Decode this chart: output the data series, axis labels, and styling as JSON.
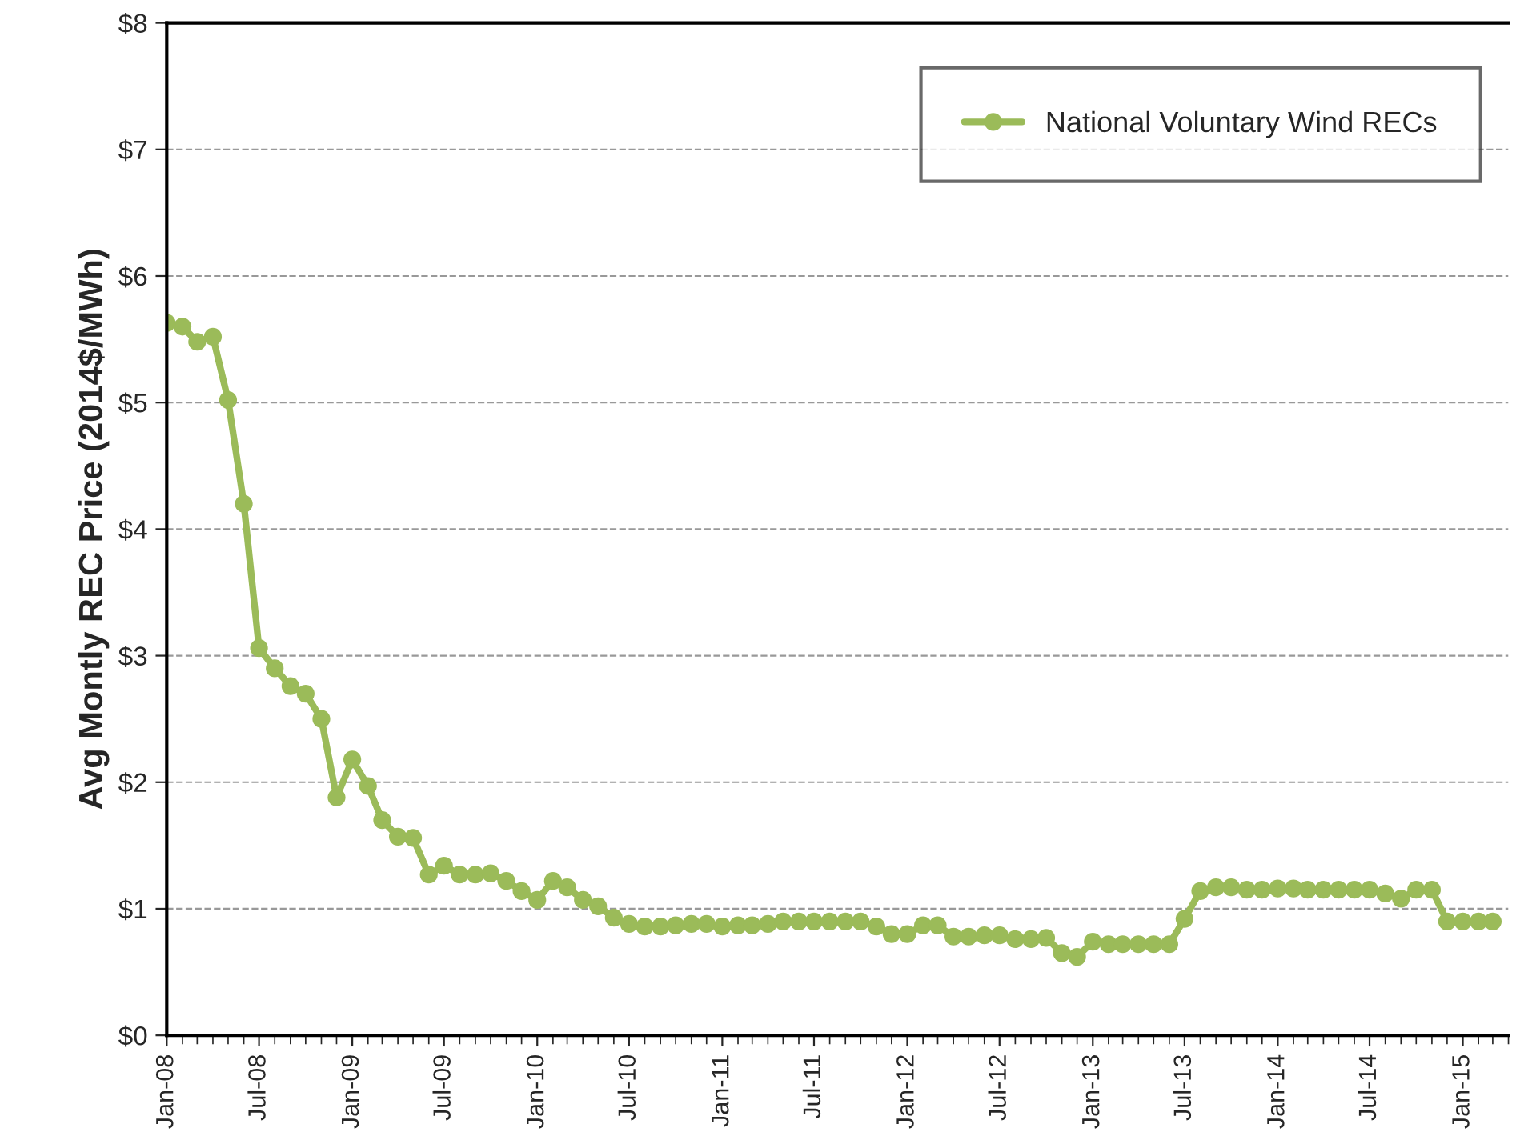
{
  "chart_data": {
    "type": "line",
    "ylabel": "Avg Montly REC Price (2014$/MWh)",
    "x": [
      "2008-01",
      "2008-02",
      "2008-03",
      "2008-04",
      "2008-05",
      "2008-06",
      "2008-07",
      "2008-08",
      "2008-09",
      "2008-10",
      "2008-11",
      "2008-12",
      "2009-01",
      "2009-02",
      "2009-03",
      "2009-04",
      "2009-05",
      "2009-06",
      "2009-07",
      "2009-08",
      "2009-09",
      "2009-10",
      "2009-11",
      "2009-12",
      "2010-01",
      "2010-02",
      "2010-03",
      "2010-04",
      "2010-05",
      "2010-06",
      "2010-07",
      "2010-08",
      "2010-09",
      "2010-10",
      "2010-11",
      "2010-12",
      "2011-01",
      "2011-02",
      "2011-03",
      "2011-04",
      "2011-05",
      "2011-06",
      "2011-07",
      "2011-08",
      "2011-09",
      "2011-10",
      "2011-11",
      "2011-12",
      "2012-01",
      "2012-02",
      "2012-03",
      "2012-04",
      "2012-05",
      "2012-06",
      "2012-07",
      "2012-08",
      "2012-09",
      "2012-10",
      "2012-11",
      "2012-12",
      "2013-01",
      "2013-02",
      "2013-03",
      "2013-04",
      "2013-05",
      "2013-06",
      "2013-07",
      "2013-08",
      "2013-09",
      "2013-10",
      "2013-11",
      "2013-12",
      "2014-01",
      "2014-02",
      "2014-03",
      "2014-04",
      "2014-05",
      "2014-06",
      "2014-07",
      "2014-08",
      "2014-09",
      "2014-10",
      "2014-11",
      "2014-12",
      "2015-01",
      "2015-02",
      "2015-03"
    ],
    "series": [
      {
        "name": "National Voluntary Wind RECs",
        "color": "#9bbb59",
        "values": [
          5.63,
          5.6,
          5.48,
          5.52,
          5.02,
          4.2,
          3.06,
          2.9,
          2.76,
          2.7,
          2.5,
          1.88,
          2.18,
          1.97,
          1.7,
          1.57,
          1.56,
          1.27,
          1.34,
          1.27,
          1.27,
          1.28,
          1.22,
          1.14,
          1.07,
          1.22,
          1.17,
          1.07,
          1.02,
          0.93,
          0.88,
          0.86,
          0.86,
          0.87,
          0.88,
          0.88,
          0.86,
          0.87,
          0.87,
          0.88,
          0.9,
          0.9,
          0.9,
          0.9,
          0.9,
          0.9,
          0.86,
          0.8,
          0.8,
          0.87,
          0.87,
          0.78,
          0.78,
          0.79,
          0.79,
          0.76,
          0.76,
          0.77,
          0.65,
          0.62,
          0.74,
          0.72,
          0.72,
          0.72,
          0.72,
          0.72,
          0.92,
          1.14,
          1.17,
          1.17,
          1.15,
          1.15,
          1.16,
          1.16,
          1.15,
          1.15,
          1.15,
          1.15,
          1.15,
          1.12,
          1.08,
          1.15,
          1.15,
          0.9,
          0.9,
          0.9,
          0.9
        ]
      }
    ],
    "xlim": [
      "2008-01",
      "2015-04"
    ],
    "xticks": [
      {
        "value": "2008-01",
        "label": "Jan-08"
      },
      {
        "value": "2008-07",
        "label": "Jul-08"
      },
      {
        "value": "2009-01",
        "label": "Jan-09"
      },
      {
        "value": "2009-07",
        "label": "Jul-09"
      },
      {
        "value": "2010-01",
        "label": "Jan-10"
      },
      {
        "value": "2010-07",
        "label": "Jul-10"
      },
      {
        "value": "2011-01",
        "label": "Jan-11"
      },
      {
        "value": "2011-07",
        "label": "Jul-11"
      },
      {
        "value": "2012-01",
        "label": "Jan-12"
      },
      {
        "value": "2012-07",
        "label": "Jul-12"
      },
      {
        "value": "2013-01",
        "label": "Jan-13"
      },
      {
        "value": "2013-07",
        "label": "Jul-13"
      },
      {
        "value": "2014-01",
        "label": "Jan-14"
      },
      {
        "value": "2014-07",
        "label": "Jul-14"
      },
      {
        "value": "2015-01",
        "label": "Jan-15"
      }
    ],
    "ylim": [
      0,
      8
    ],
    "yticks": [
      {
        "value": 0,
        "label": "$0"
      },
      {
        "value": 1,
        "label": "$1"
      },
      {
        "value": 2,
        "label": "$2"
      },
      {
        "value": 3,
        "label": "$3"
      },
      {
        "value": 4,
        "label": "$4"
      },
      {
        "value": 5,
        "label": "$5"
      },
      {
        "value": 6,
        "label": "$6"
      },
      {
        "value": 7,
        "label": "$7"
      },
      {
        "value": 8,
        "label": "$8"
      }
    ],
    "grid": "y",
    "legend": "top right",
    "marker": "circle",
    "line_style": "solid"
  }
}
